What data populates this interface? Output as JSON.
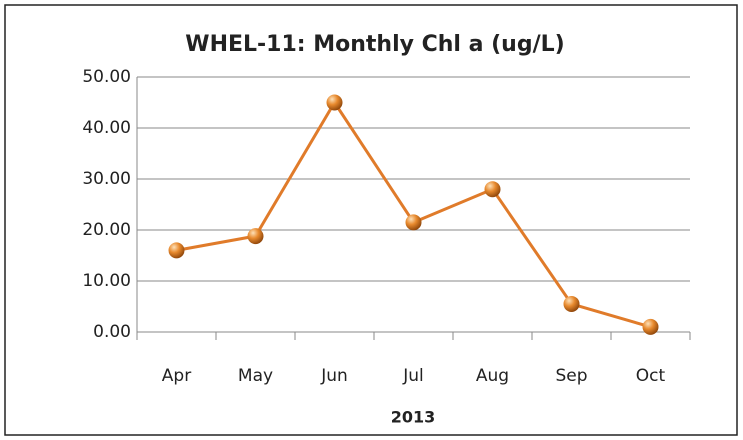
{
  "chart_data": {
    "type": "line",
    "title": "WHEL-11: Monthly Chl a (ug/L)",
    "x_label": "2013",
    "categories": [
      "Apr",
      "May",
      "Jun",
      "Jul",
      "Aug",
      "Sep",
      "Oct"
    ],
    "series": [
      {
        "name": "Chl a",
        "color": "#e07b2a",
        "values": [
          16,
          18.8,
          45,
          21.5,
          28,
          5.5,
          1
        ]
      }
    ],
    "ylim": [
      0,
      50
    ],
    "yticks": [
      {
        "value": 0,
        "label": "0.00"
      },
      {
        "value": 10,
        "label": "10.00"
      },
      {
        "value": 20,
        "label": "20.00"
      },
      {
        "value": 30,
        "label": "30.00"
      },
      {
        "value": 40,
        "label": "40.00"
      },
      {
        "value": 50,
        "label": "50.00"
      }
    ],
    "grid": true,
    "legend": false
  }
}
